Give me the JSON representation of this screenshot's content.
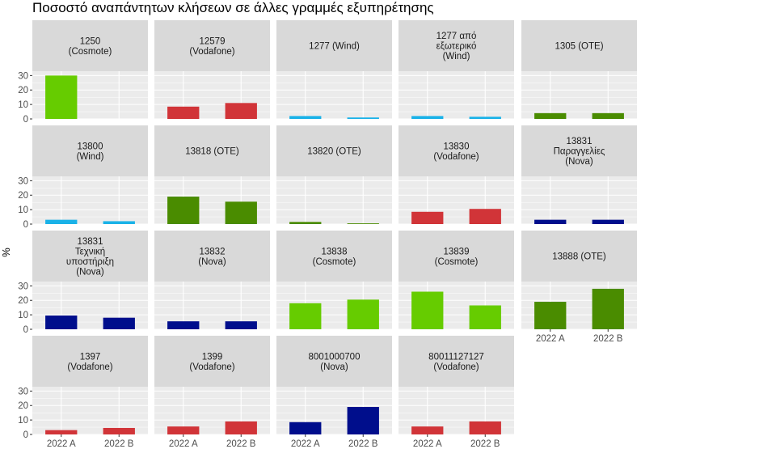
{
  "chart_data": {
    "type": "bar",
    "title": "Ποσοστό αναπάντητων κλήσεων σε άλλες γραμμές εξυπηρέτησης",
    "xlabel": "",
    "ylabel": "%",
    "ylim": [
      0,
      33
    ],
    "yticks": [
      0,
      10,
      20,
      30
    ],
    "categories": [
      "2022 A",
      "2022 B"
    ],
    "colors": {
      "Cosmote": "#66cc00",
      "Vodafone": "#d13438",
      "Wind": "#1ab2e8",
      "OTE": "#4a8c00",
      "Nova": "#000e8c"
    },
    "panels": [
      {
        "label": "1250\n(Cosmote)",
        "operator": "Cosmote",
        "values": [
          30,
          0
        ]
      },
      {
        "label": "12579\n(Vodafone)",
        "operator": "Vodafone",
        "values": [
          8.5,
          11
        ]
      },
      {
        "label": "1277 (Wind)",
        "operator": "Wind",
        "values": [
          2,
          1
        ]
      },
      {
        "label": "1277 από\nεξωτερικό\n(Wind)",
        "operator": "Wind",
        "values": [
          2,
          1.5
        ]
      },
      {
        "label": "1305 (OTE)",
        "operator": "OTE",
        "values": [
          4,
          4
        ]
      },
      {
        "label": "13800\n(Wind)",
        "operator": "Wind",
        "values": [
          3,
          2
        ]
      },
      {
        "label": "13818 (OTE)",
        "operator": "OTE",
        "values": [
          19,
          15.5
        ]
      },
      {
        "label": "13820 (OTE)",
        "operator": "OTE",
        "values": [
          1.5,
          0.5
        ]
      },
      {
        "label": "13830\n(Vodafone)",
        "operator": "Vodafone",
        "values": [
          8.5,
          10.5
        ]
      },
      {
        "label": "13831\nΠαραγγελίες\n(Nova)",
        "operator": "Nova",
        "values": [
          3,
          3
        ]
      },
      {
        "label": "13831\nΤεχνική\nυποστήριξη\n(Nova)",
        "operator": "Nova",
        "values": [
          9.5,
          8
        ]
      },
      {
        "label": "13832\n(Nova)",
        "operator": "Nova",
        "values": [
          5.5,
          5.5
        ]
      },
      {
        "label": "13838\n(Cosmote)",
        "operator": "Cosmote",
        "values": [
          18,
          20.5
        ]
      },
      {
        "label": "13839\n(Cosmote)",
        "operator": "Cosmote",
        "values": [
          26,
          16.5
        ]
      },
      {
        "label": "13888 (OTE)",
        "operator": "OTE",
        "values": [
          19,
          28
        ]
      },
      {
        "label": "1397\n(Vodafone)",
        "operator": "Vodafone",
        "values": [
          3,
          4.5
        ]
      },
      {
        "label": "1399\n(Vodafone)",
        "operator": "Vodafone",
        "values": [
          5.5,
          9
        ]
      },
      {
        "label": "8001000700\n(Nova)",
        "operator": "Nova",
        "values": [
          8.5,
          19
        ]
      },
      {
        "label": "80011127127\n(Vodafone)",
        "operator": "Vodafone",
        "values": [
          5.5,
          9
        ]
      }
    ]
  }
}
